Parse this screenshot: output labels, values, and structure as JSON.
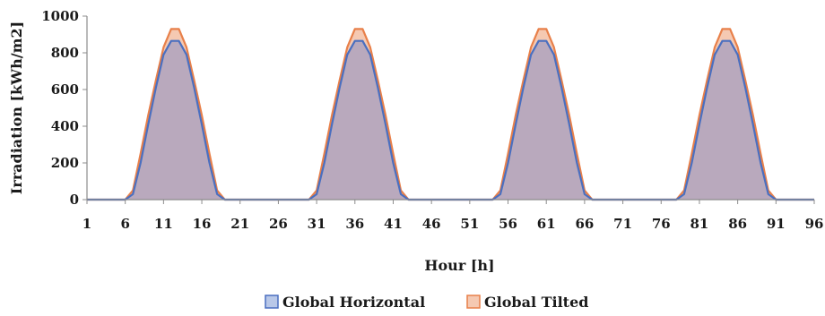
{
  "chart_data": {
    "type": "area",
    "xlabel": "Hour [h]",
    "ylabel": "Irradiation  [kWh/m2]",
    "xlim": [
      1,
      96
    ],
    "ylim": [
      0,
      1000
    ],
    "x_ticks": [
      1,
      6,
      11,
      16,
      21,
      26,
      31,
      36,
      41,
      46,
      51,
      56,
      61,
      66,
      71,
      76,
      81,
      86,
      91,
      96
    ],
    "y_ticks": [
      0,
      200,
      400,
      600,
      800,
      1000
    ],
    "grid": false,
    "legend_position": "bottom",
    "series": [
      {
        "name": "Global Tilted",
        "fill_color": "#f5c9b2",
        "line_color": "#e8804a",
        "values": [
          0,
          0,
          0,
          0,
          0,
          0,
          50,
          250,
          460,
          650,
          830,
          930,
          930,
          830,
          650,
          460,
          250,
          50,
          0,
          0,
          0,
          0,
          0,
          0,
          0,
          0,
          0,
          0,
          0,
          0,
          50,
          250,
          460,
          650,
          830,
          930,
          930,
          830,
          650,
          460,
          250,
          50,
          0,
          0,
          0,
          0,
          0,
          0,
          0,
          0,
          0,
          0,
          0,
          0,
          50,
          250,
          460,
          650,
          830,
          930,
          930,
          830,
          650,
          460,
          250,
          50,
          0,
          0,
          0,
          0,
          0,
          0,
          0,
          0,
          0,
          0,
          0,
          0,
          50,
          250,
          460,
          650,
          830,
          930,
          930,
          830,
          650,
          460,
          250,
          50,
          0,
          0,
          0,
          0,
          0,
          0
        ]
      },
      {
        "name": "Global Horizontal",
        "fill_color": "#b9a9bd",
        "line_color": "#4a6fc0",
        "values": [
          0,
          0,
          0,
          0,
          0,
          0,
          30,
          200,
          410,
          610,
          790,
          865,
          865,
          790,
          610,
          410,
          200,
          30,
          0,
          0,
          0,
          0,
          0,
          0,
          0,
          0,
          0,
          0,
          0,
          0,
          30,
          200,
          410,
          610,
          790,
          865,
          865,
          790,
          610,
          410,
          200,
          30,
          0,
          0,
          0,
          0,
          0,
          0,
          0,
          0,
          0,
          0,
          0,
          0,
          30,
          200,
          410,
          610,
          790,
          865,
          865,
          790,
          610,
          410,
          200,
          30,
          0,
          0,
          0,
          0,
          0,
          0,
          0,
          0,
          0,
          0,
          0,
          0,
          30,
          200,
          410,
          610,
          790,
          865,
          865,
          790,
          610,
          410,
          200,
          30,
          0,
          0,
          0,
          0,
          0,
          0
        ]
      }
    ],
    "legend": [
      {
        "label": "Global Horizontal",
        "fill_color": "#b9c8e8",
        "line_color": "#4a6fc0"
      },
      {
        "label": "Global Tilted",
        "fill_color": "#f5c9b2",
        "line_color": "#e8804a"
      }
    ]
  }
}
